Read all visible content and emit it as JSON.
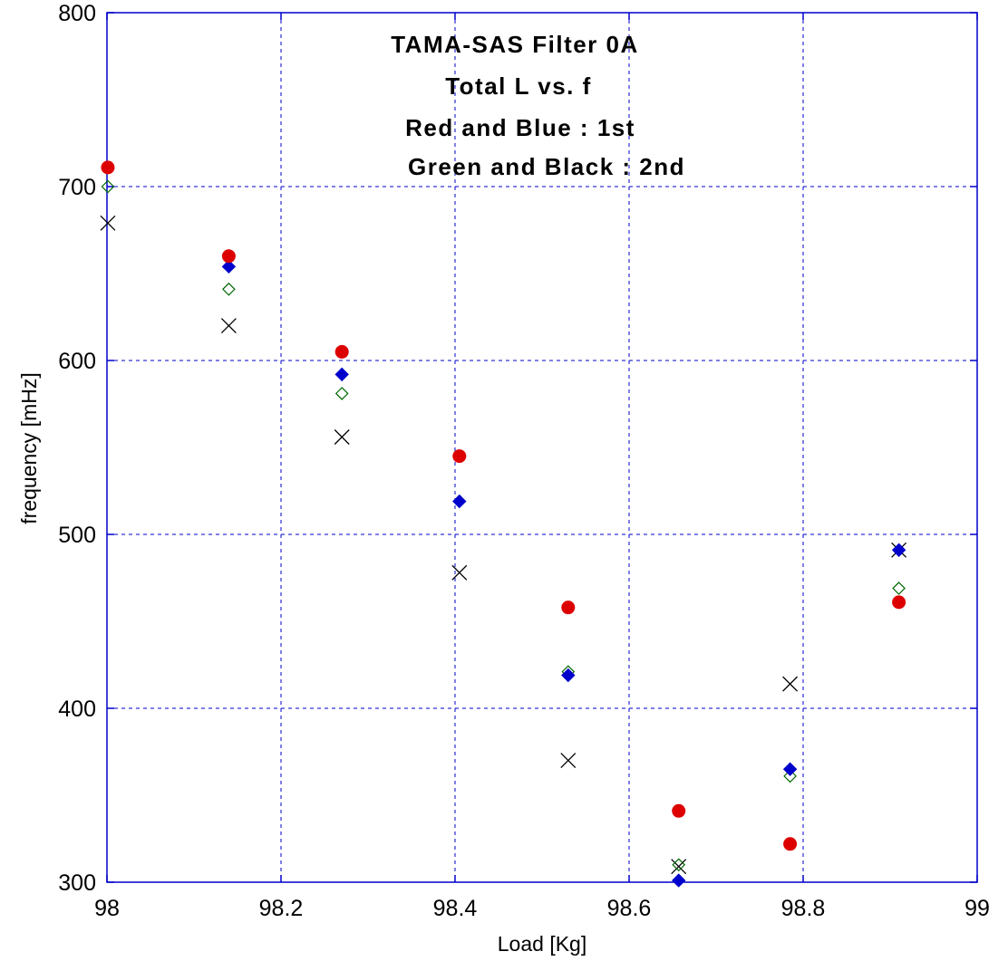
{
  "chart_data": {
    "type": "scatter",
    "title_lines": [
      "TAMA-SAS Filter 0A",
      "Total L vs. f",
      "Red and Blue : 1st",
      "Green and Black : 2nd"
    ],
    "xlabel": "Load [Kg]",
    "ylabel": "frequency [mHz]",
    "xlim": [
      98,
      99
    ],
    "ylim": [
      300,
      800
    ],
    "x_ticks": [
      "98",
      "98.2",
      "98.4",
      "98.6",
      "98.8",
      "99"
    ],
    "y_ticks": [
      "300",
      "400",
      "500",
      "600",
      "700",
      "800"
    ],
    "x_tick_values": [
      98,
      98.2,
      98.4,
      98.6,
      98.8,
      99
    ],
    "y_tick_values": [
      300,
      400,
      500,
      600,
      700,
      800
    ],
    "grid": true,
    "series": [
      {
        "color": "#dd0000",
        "marker": "filled-circle",
        "x": [
          98.001,
          98.14,
          98.27,
          98.405,
          98.53,
          98.657,
          98.785,
          98.91
        ],
        "y": [
          711,
          660,
          605,
          545,
          458,
          341,
          322,
          461
        ]
      },
      {
        "color": "#0000cc",
        "marker": "filled-diamond",
        "x": [
          98.14,
          98.27,
          98.405,
          98.53,
          98.657,
          98.785,
          98.91
        ],
        "y": [
          654,
          592,
          519,
          419,
          301,
          365,
          491
        ]
      },
      {
        "color": "#006600",
        "marker": "open-diamond",
        "x": [
          98.001,
          98.14,
          98.27,
          98.405,
          98.53,
          98.657,
          98.785,
          98.91
        ],
        "y": [
          700,
          641,
          581,
          519,
          421,
          310,
          361,
          469
        ]
      },
      {
        "color": "#000000",
        "marker": "x",
        "x": [
          98.001,
          98.14,
          98.27,
          98.405,
          98.53,
          98.657,
          98.785,
          98.91
        ],
        "y": [
          679,
          620,
          556,
          478,
          370,
          309,
          414,
          491
        ]
      }
    ]
  }
}
